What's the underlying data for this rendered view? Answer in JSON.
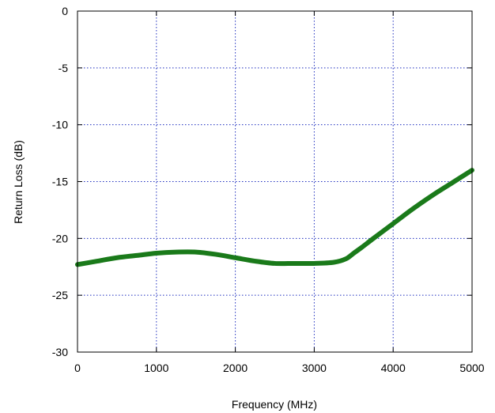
{
  "chart_data": {
    "type": "line",
    "title": "",
    "xlabel": "Frequency (MHz)",
    "ylabel": "Return Loss (dB)",
    "xlim": [
      0,
      5000
    ],
    "ylim": [
      -30,
      0
    ],
    "grid": true,
    "x_ticks": [
      0,
      1000,
      2000,
      3000,
      4000,
      5000
    ],
    "y_ticks": [
      0,
      -5,
      -10,
      -15,
      -20,
      -25,
      -30
    ],
    "x_tick_labels": [
      "0",
      "1000",
      "2000",
      "3000",
      "4000",
      "5000"
    ],
    "y_tick_labels": [
      "0",
      "-5",
      "-10",
      "-15",
      "-20",
      "-25",
      "-30"
    ],
    "series": [
      {
        "color": "#1a7a1a",
        "x": [
          0,
          250,
          500,
          750,
          1000,
          1250,
          1500,
          1750,
          2000,
          2250,
          2500,
          2750,
          3000,
          3250,
          3400,
          3500,
          3600,
          3750,
          4000,
          4250,
          4500,
          4750,
          5000
        ],
        "y": [
          -22.3,
          -22.0,
          -21.7,
          -21.5,
          -21.3,
          -21.2,
          -21.2,
          -21.4,
          -21.7,
          -22.0,
          -22.2,
          -22.2,
          -22.2,
          -22.1,
          -21.8,
          -21.3,
          -20.8,
          -20.0,
          -18.7,
          -17.4,
          -16.2,
          -15.1,
          -14.0
        ]
      }
    ]
  },
  "colors": {
    "grid": "#1f2fbf",
    "series": "#1a7a1a",
    "frame": "#000000"
  }
}
